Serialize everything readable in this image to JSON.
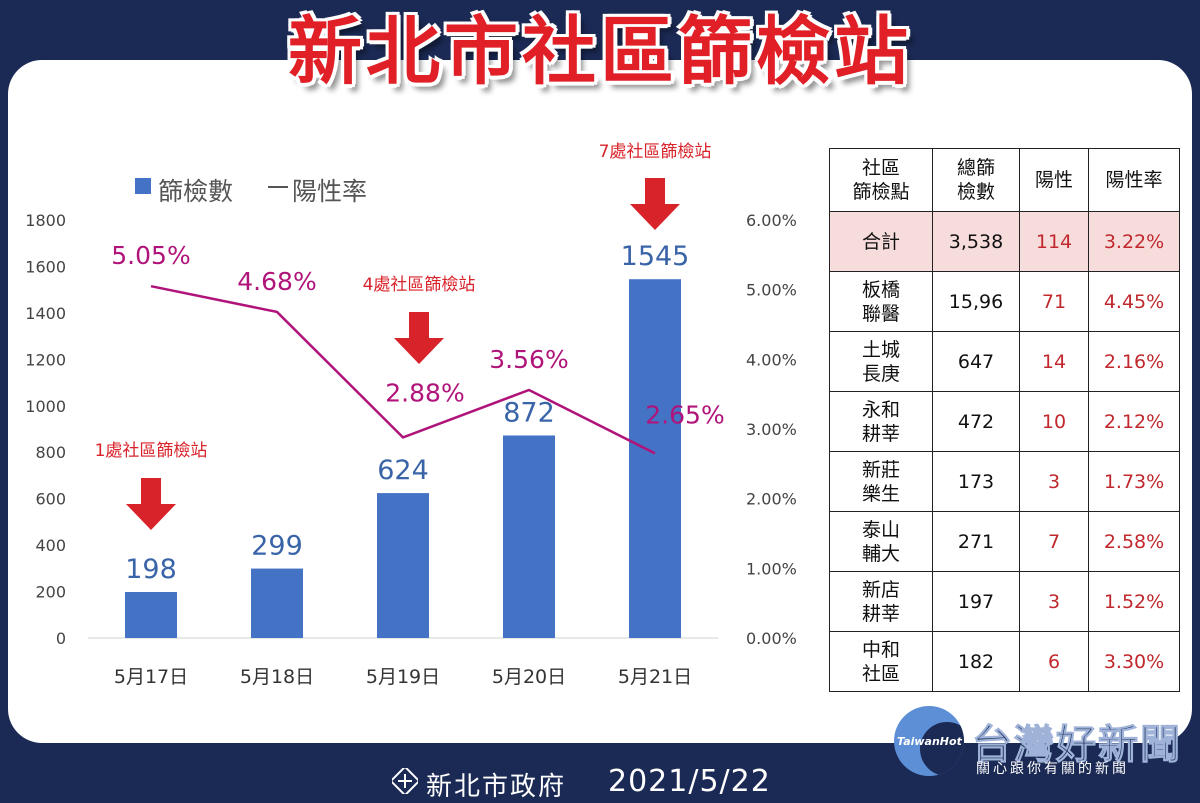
{
  "title": "新北市社區篩檢站",
  "chart_data": {
    "type": "bar+line",
    "categories": [
      "5月17日",
      "5月18日",
      "5月19日",
      "5月20日",
      "5月21日"
    ],
    "series": [
      {
        "name": "篩檢數",
        "type": "bar",
        "axis": "left",
        "values": [
          198,
          299,
          624,
          872,
          1545
        ],
        "color": "#4472c4"
      },
      {
        "name": "陽性率",
        "type": "line",
        "axis": "right",
        "values": [
          5.05,
          4.68,
          2.88,
          3.56,
          2.65
        ],
        "labels": [
          "5.05%",
          "4.68%",
          "2.88%",
          "3.56%",
          "2.65%"
        ],
        "color": "#b0147a"
      }
    ],
    "y_left": {
      "min": 0,
      "max": 1800,
      "ticks": [
        "0",
        "200",
        "400",
        "600",
        "800",
        "1000",
        "1200",
        "1400",
        "1600",
        "1800"
      ]
    },
    "y_right": {
      "min": 0,
      "max": 6,
      "ticks": [
        "0.00%",
        "1.00%",
        "2.00%",
        "3.00%",
        "4.00%",
        "5.00%",
        "6.00%"
      ]
    },
    "legend": {
      "placement": "top-left"
    },
    "annotations": [
      {
        "text": "1處社區篩檢站",
        "category": "5月17日"
      },
      {
        "text": "4處社區篩檢站",
        "category": "5月19日"
      },
      {
        "text": "7處社區篩檢站",
        "category": "5月21日"
      }
    ],
    "annotation_color": "#d9232a"
  },
  "table": {
    "headers": [
      "社區\n篩檢點",
      "總篩\n檢數",
      "陽性",
      "陽性率"
    ],
    "rows": [
      [
        "合計",
        "3,538",
        "114",
        "3.22%"
      ],
      [
        "板橋\n聯醫",
        "15,96",
        "71",
        "4.45%"
      ],
      [
        "土城\n長庚",
        "647",
        "14",
        "2.16%"
      ],
      [
        "永和\n耕莘",
        "472",
        "10",
        "2.12%"
      ],
      [
        "新莊\n樂生",
        "173",
        "3",
        "1.73%"
      ],
      [
        "泰山\n輔大",
        "271",
        "7",
        "2.58%"
      ],
      [
        "新店\n耕莘",
        "197",
        "3",
        "1.52%"
      ],
      [
        "中和\n社區",
        "182",
        "6",
        "3.30%"
      ]
    ]
  },
  "footer": {
    "org": "新北市政府",
    "date": "2021/5/22"
  },
  "watermark": {
    "brand": "TaiwanHot",
    "name": "台灣好新聞",
    "tagline": "關心跟你有關的新聞"
  }
}
